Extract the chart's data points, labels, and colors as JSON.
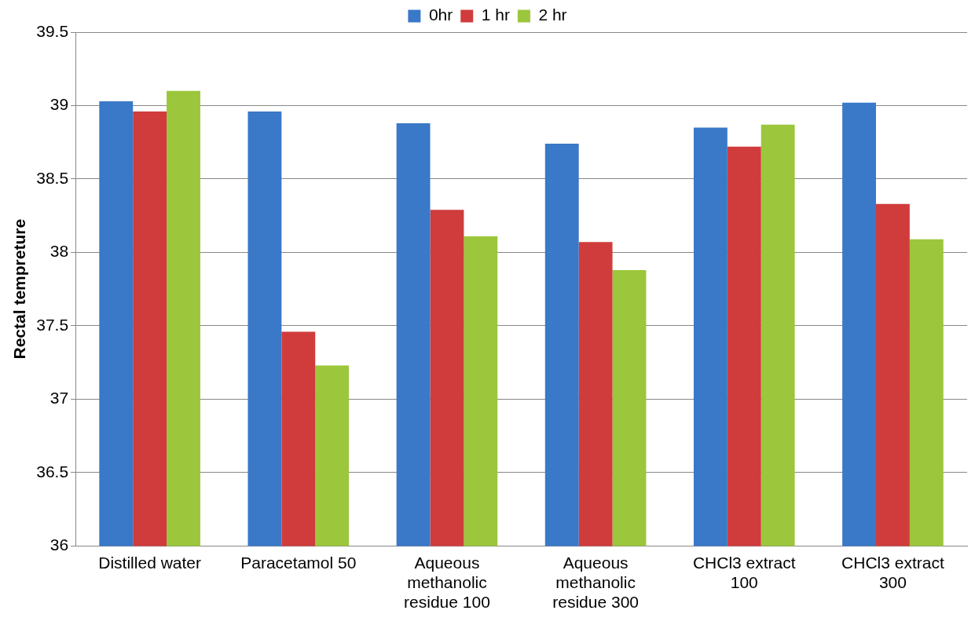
{
  "chart_data": {
    "type": "bar",
    "ylabel": "Rectal tempreture",
    "categories": [
      "Distilled water",
      "Paracetamol 50",
      "Aqueous methanolic residue 100",
      "Aqueous methanolic residue 300",
      "CHCl3 extract 100",
      "CHCl3 extract 300"
    ],
    "series": [
      {
        "name": "0hr",
        "color": "#3a78c8",
        "values": [
          39.03,
          38.96,
          38.88,
          38.74,
          38.85,
          39.02
        ]
      },
      {
        "name": "1 hr",
        "color": "#d03c3c",
        "values": [
          38.96,
          37.46,
          38.29,
          38.07,
          38.72,
          38.33
        ]
      },
      {
        "name": "2 hr",
        "color": "#9cc63c",
        "values": [
          39.1,
          37.23,
          38.11,
          37.88,
          38.87,
          38.09
        ]
      }
    ],
    "ylim": [
      36,
      39.5
    ],
    "yticks": [
      36,
      36.5,
      37,
      37.5,
      38,
      38.5,
      39,
      39.5
    ],
    "grid": "y",
    "legend": "top"
  }
}
